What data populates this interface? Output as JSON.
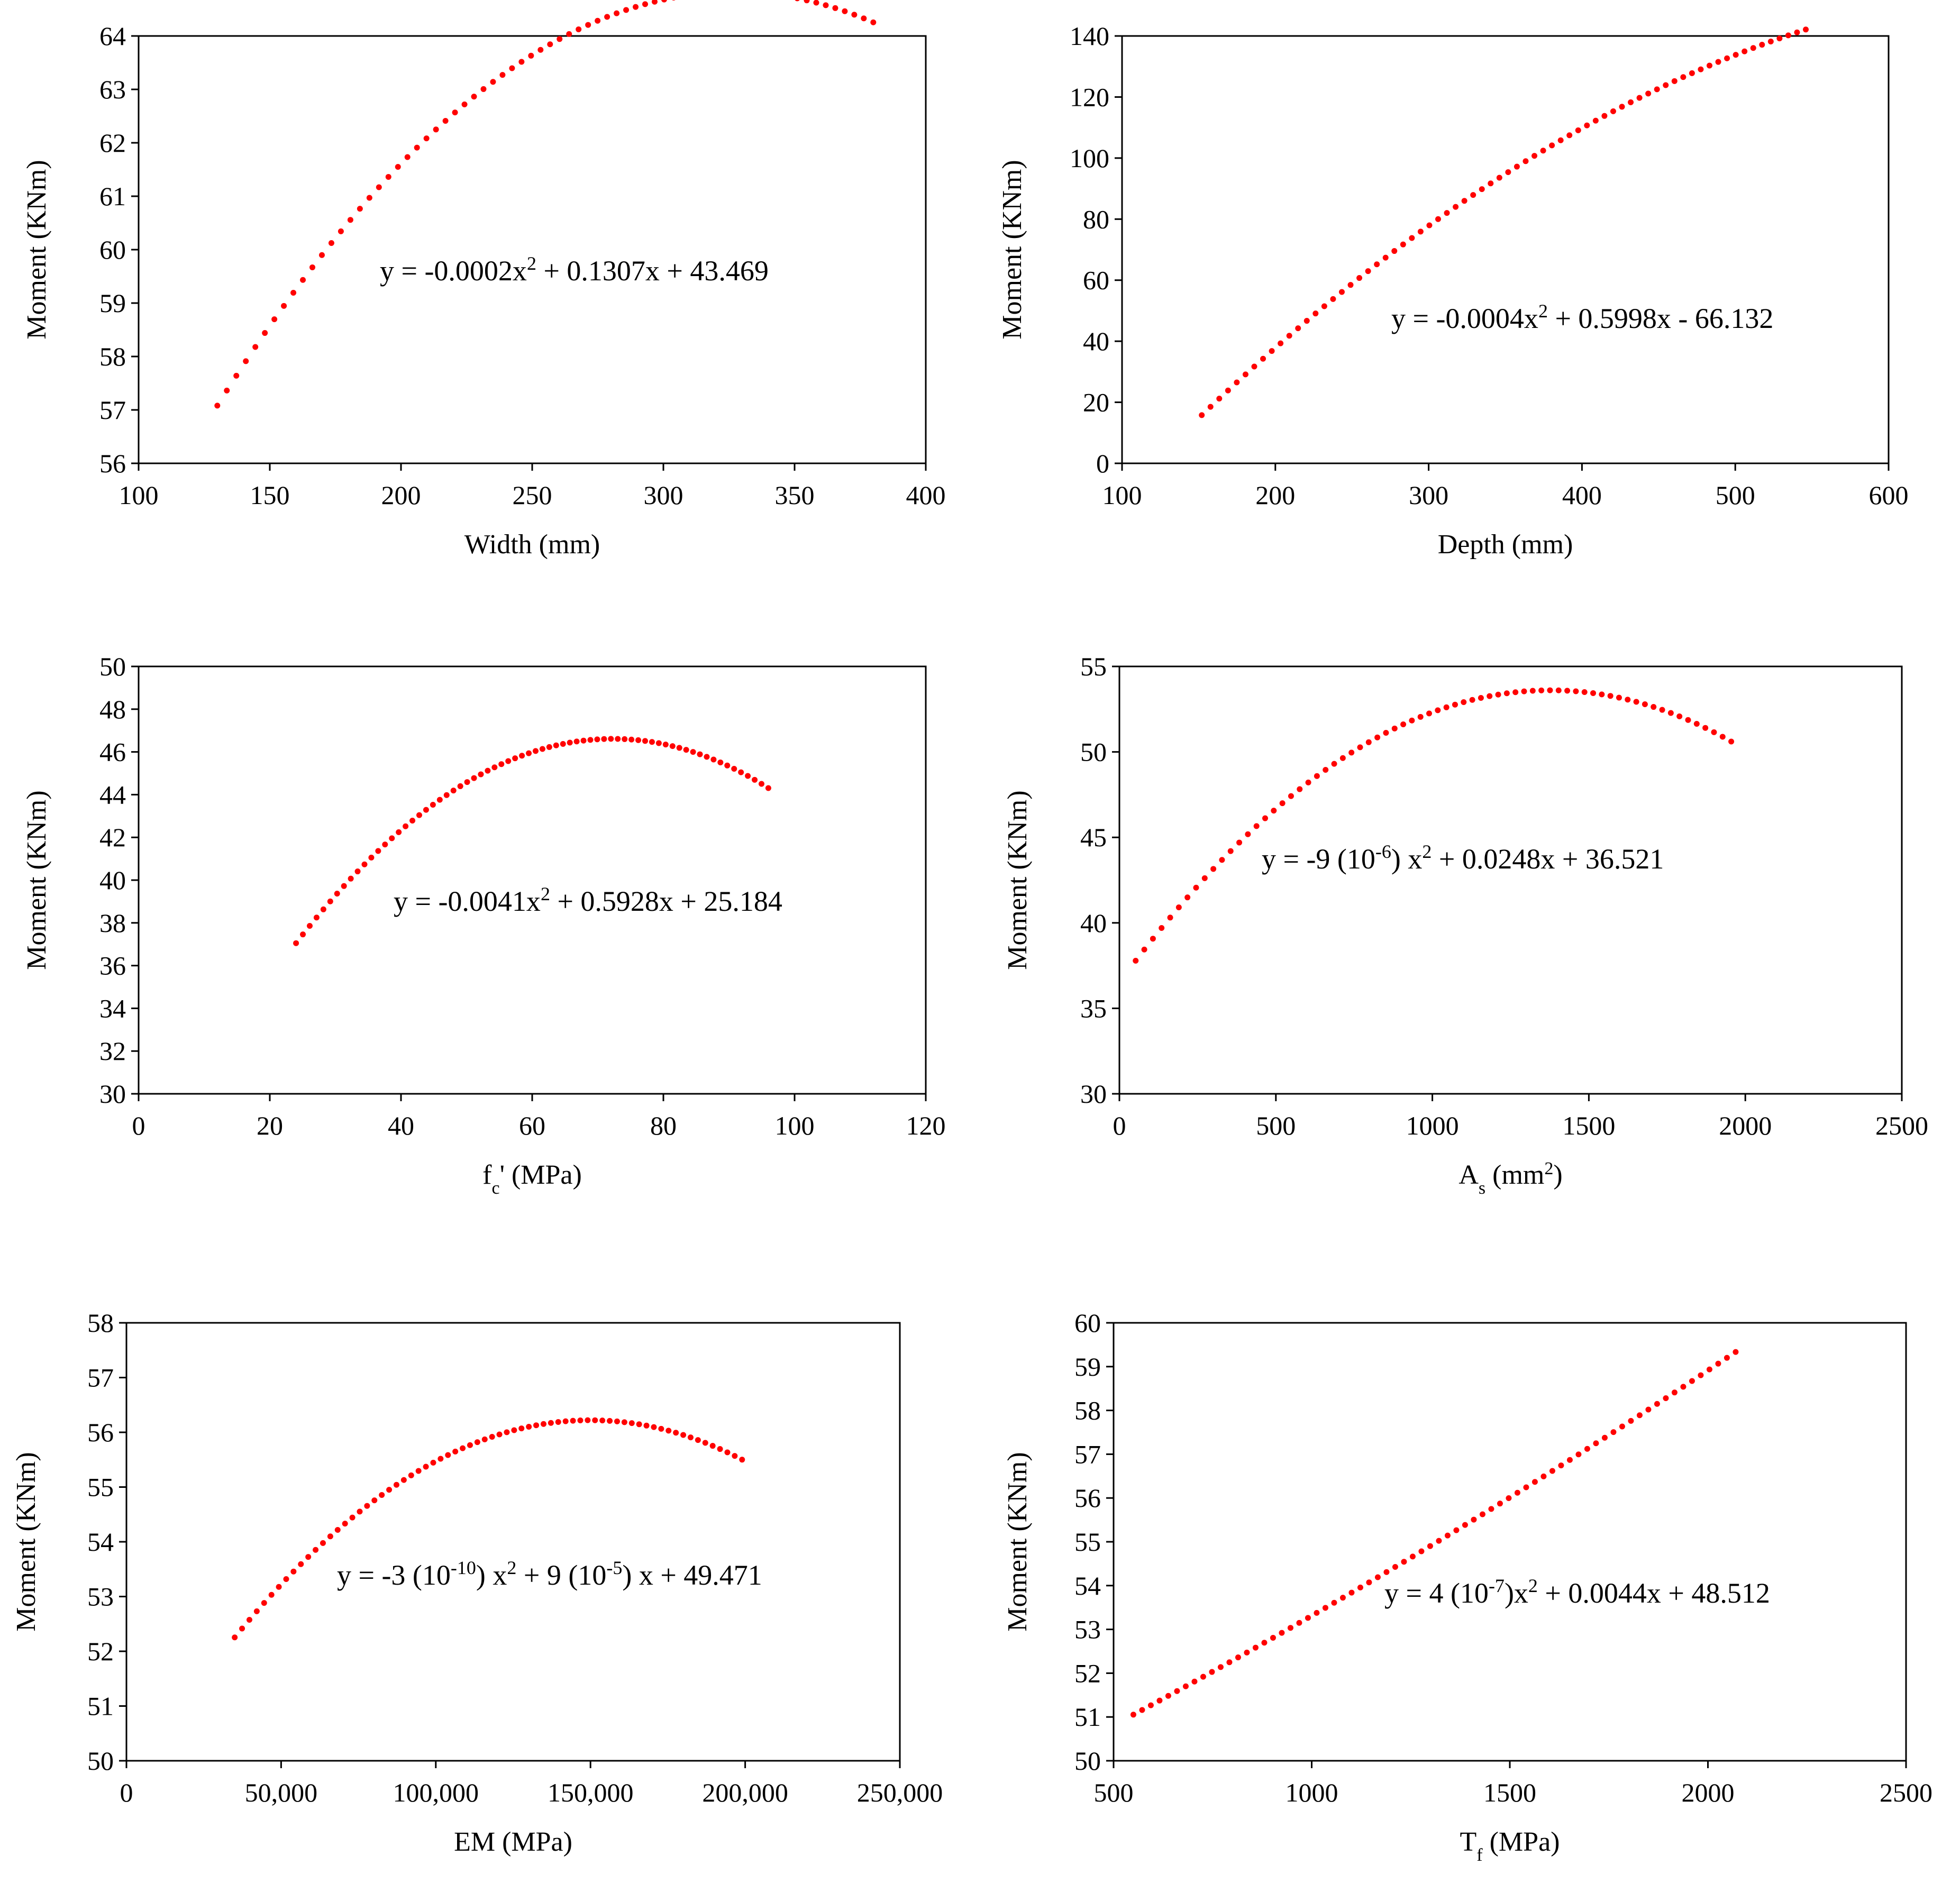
{
  "colors": {
    "marker": "#ff0000",
    "axis": "#000000",
    "background": "#ffffff"
  },
  "chart_data": [
    {
      "type": "scatter",
      "xlabel": {
        "main": "Width  (mm)"
      },
      "ylabel": "Moment  (KNm)",
      "xlim": [
        100,
        400
      ],
      "ylim": [
        56,
        64
      ],
      "xticks": [
        100,
        150,
        200,
        250,
        300,
        350,
        400
      ],
      "yticks": [
        56,
        57,
        58,
        59,
        60,
        61,
        62,
        63,
        64
      ],
      "xtick_format": "plain",
      "equation": [
        {
          "t": "y = -0.0002x"
        },
        {
          "t": "2",
          "sup": true
        },
        {
          "t": " + 0.1307x + 43.469"
        }
      ],
      "equation_text": "y = -0.0002x2 + 0.1307x + 43.469",
      "fit": {
        "a": -0.0002,
        "b": 0.1307,
        "c": 43.469
      },
      "x_range": [
        130,
        380
      ],
      "n_points": 70
    },
    {
      "type": "scatter",
      "xlabel": {
        "main": "Depth  (mm)"
      },
      "ylabel": "Moment  (KNm)",
      "xlim": [
        100,
        600
      ],
      "ylim": [
        0,
        140
      ],
      "xticks": [
        100,
        200,
        300,
        400,
        500,
        600
      ],
      "yticks": [
        0,
        20,
        40,
        60,
        80,
        100,
        120,
        140
      ],
      "xtick_format": "plain",
      "equation": [
        {
          "t": "y = -0.0004x"
        },
        {
          "t": "2",
          "sup": true
        },
        {
          "t": " + 0.5998x - 66.132"
        }
      ],
      "equation_text": "y = -0.0004x2 + 0.5998x - 66.132",
      "fit": {
        "a": -0.0004,
        "b": 0.5998,
        "c": -66.132
      },
      "x_range": [
        152,
        546
      ],
      "n_points": 70
    },
    {
      "type": "scatter",
      "xlabel": {
        "main": "f",
        "sub": "c",
        "after": "' (MPa)"
      },
      "ylabel": "Moment  (KNm)",
      "xlim": [
        0,
        120
      ],
      "ylim": [
        30,
        50
      ],
      "xticks": [
        0,
        20,
        40,
        60,
        80,
        100,
        120
      ],
      "yticks": [
        30,
        32,
        34,
        36,
        38,
        40,
        42,
        44,
        46,
        48,
        50
      ],
      "xtick_format": "plain",
      "equation": [
        {
          "t": "y = -0.0041x"
        },
        {
          "t": "2",
          "sup": true
        },
        {
          "t": " + 0.5928x + 25.184"
        }
      ],
      "equation_text": "y = -0.0041x2 + 0.5928x + 25.184",
      "fit": {
        "a": -0.0041,
        "b": 0.5928,
        "c": 25.184
      },
      "x_range": [
        24,
        96
      ],
      "n_points": 70
    },
    {
      "type": "scatter",
      "xlabel": {
        "main": "A",
        "sub": "s",
        "after": " (mm",
        "sup": "2",
        "end": ")"
      },
      "ylabel": "Moment  (KNm)",
      "xlim": [
        0,
        2500
      ],
      "ylim": [
        30,
        55
      ],
      "xticks": [
        0,
        500,
        1000,
        1500,
        2000,
        2500
      ],
      "yticks": [
        30,
        35,
        40,
        45,
        50,
        55
      ],
      "xtick_format": "plain",
      "equation": [
        {
          "t": "y = -9 (10"
        },
        {
          "t": "-6",
          "sup": true
        },
        {
          "t": ") x"
        },
        {
          "t": "2",
          "sup": true
        },
        {
          "t": " + 0.0248x + 36.521"
        }
      ],
      "equation_text": "y = -9 (10-6) x2 + 0.0248x + 36.521",
      "fit": {
        "a": -9e-06,
        "b": 0.0248,
        "c": 36.521
      },
      "x_range": [
        52,
        1955
      ],
      "n_points": 70
    },
    {
      "type": "scatter",
      "xlabel": {
        "main": "EM (MPa)"
      },
      "ylabel": "Moment  (KNm)",
      "xlim": [
        0,
        250000
      ],
      "ylim": [
        50,
        58
      ],
      "xticks": [
        0,
        50000,
        100000,
        150000,
        200000,
        250000
      ],
      "ytick_values": [
        50,
        51,
        52,
        53,
        54,
        55,
        56,
        57,
        58
      ],
      "yticks": [
        50,
        51,
        52,
        53,
        54,
        55,
        56,
        57,
        58
      ],
      "xtick_labels": [
        "0",
        "50,000",
        "100,000",
        "150,000",
        "200,000",
        "250,000"
      ],
      "xtick_format": "labels",
      "equation": [
        {
          "t": "y = -3 (10"
        },
        {
          "t": "-10",
          "sup": true
        },
        {
          "t": ") x"
        },
        {
          "t": "2",
          "sup": true
        },
        {
          "t": " + 9 (10"
        },
        {
          "t": "-5",
          "sup": true
        },
        {
          "t": ") x + 49.471"
        }
      ],
      "equation_text": "y = -3 (10-10) x2 + 9 (10-5) x + 49.471",
      "fit": {
        "a": -3e-10,
        "b": 9e-05,
        "c": 49.471
      },
      "x_range": [
        35000,
        199000
      ],
      "n_points": 70
    },
    {
      "type": "scatter",
      "xlabel": {
        "main": "T",
        "sub": "f",
        "after": " (MPa)"
      },
      "ylabel": "Moment  (KNm)",
      "xlim": [
        500,
        2500
      ],
      "ylim": [
        50,
        60
      ],
      "xticks": [
        500,
        1000,
        1500,
        2000,
        2500
      ],
      "yticks": [
        50,
        51,
        52,
        53,
        54,
        55,
        56,
        57,
        58,
        59,
        60
      ],
      "xtick_format": "plain",
      "equation": [
        {
          "t": "y = 4 (10"
        },
        {
          "t": "-7",
          "sup": true
        },
        {
          "t": ")x"
        },
        {
          "t": "2",
          "sup": true
        },
        {
          "t": " + 0.0044x + 48.512"
        }
      ],
      "equation_text": "y = 4 (10-7)x2 + 0.0044x + 48.512",
      "fit": {
        "a": 4e-07,
        "b": 0.0044,
        "c": 48.512
      },
      "x_range": [
        550,
        2070
      ],
      "n_points": 70
    }
  ]
}
